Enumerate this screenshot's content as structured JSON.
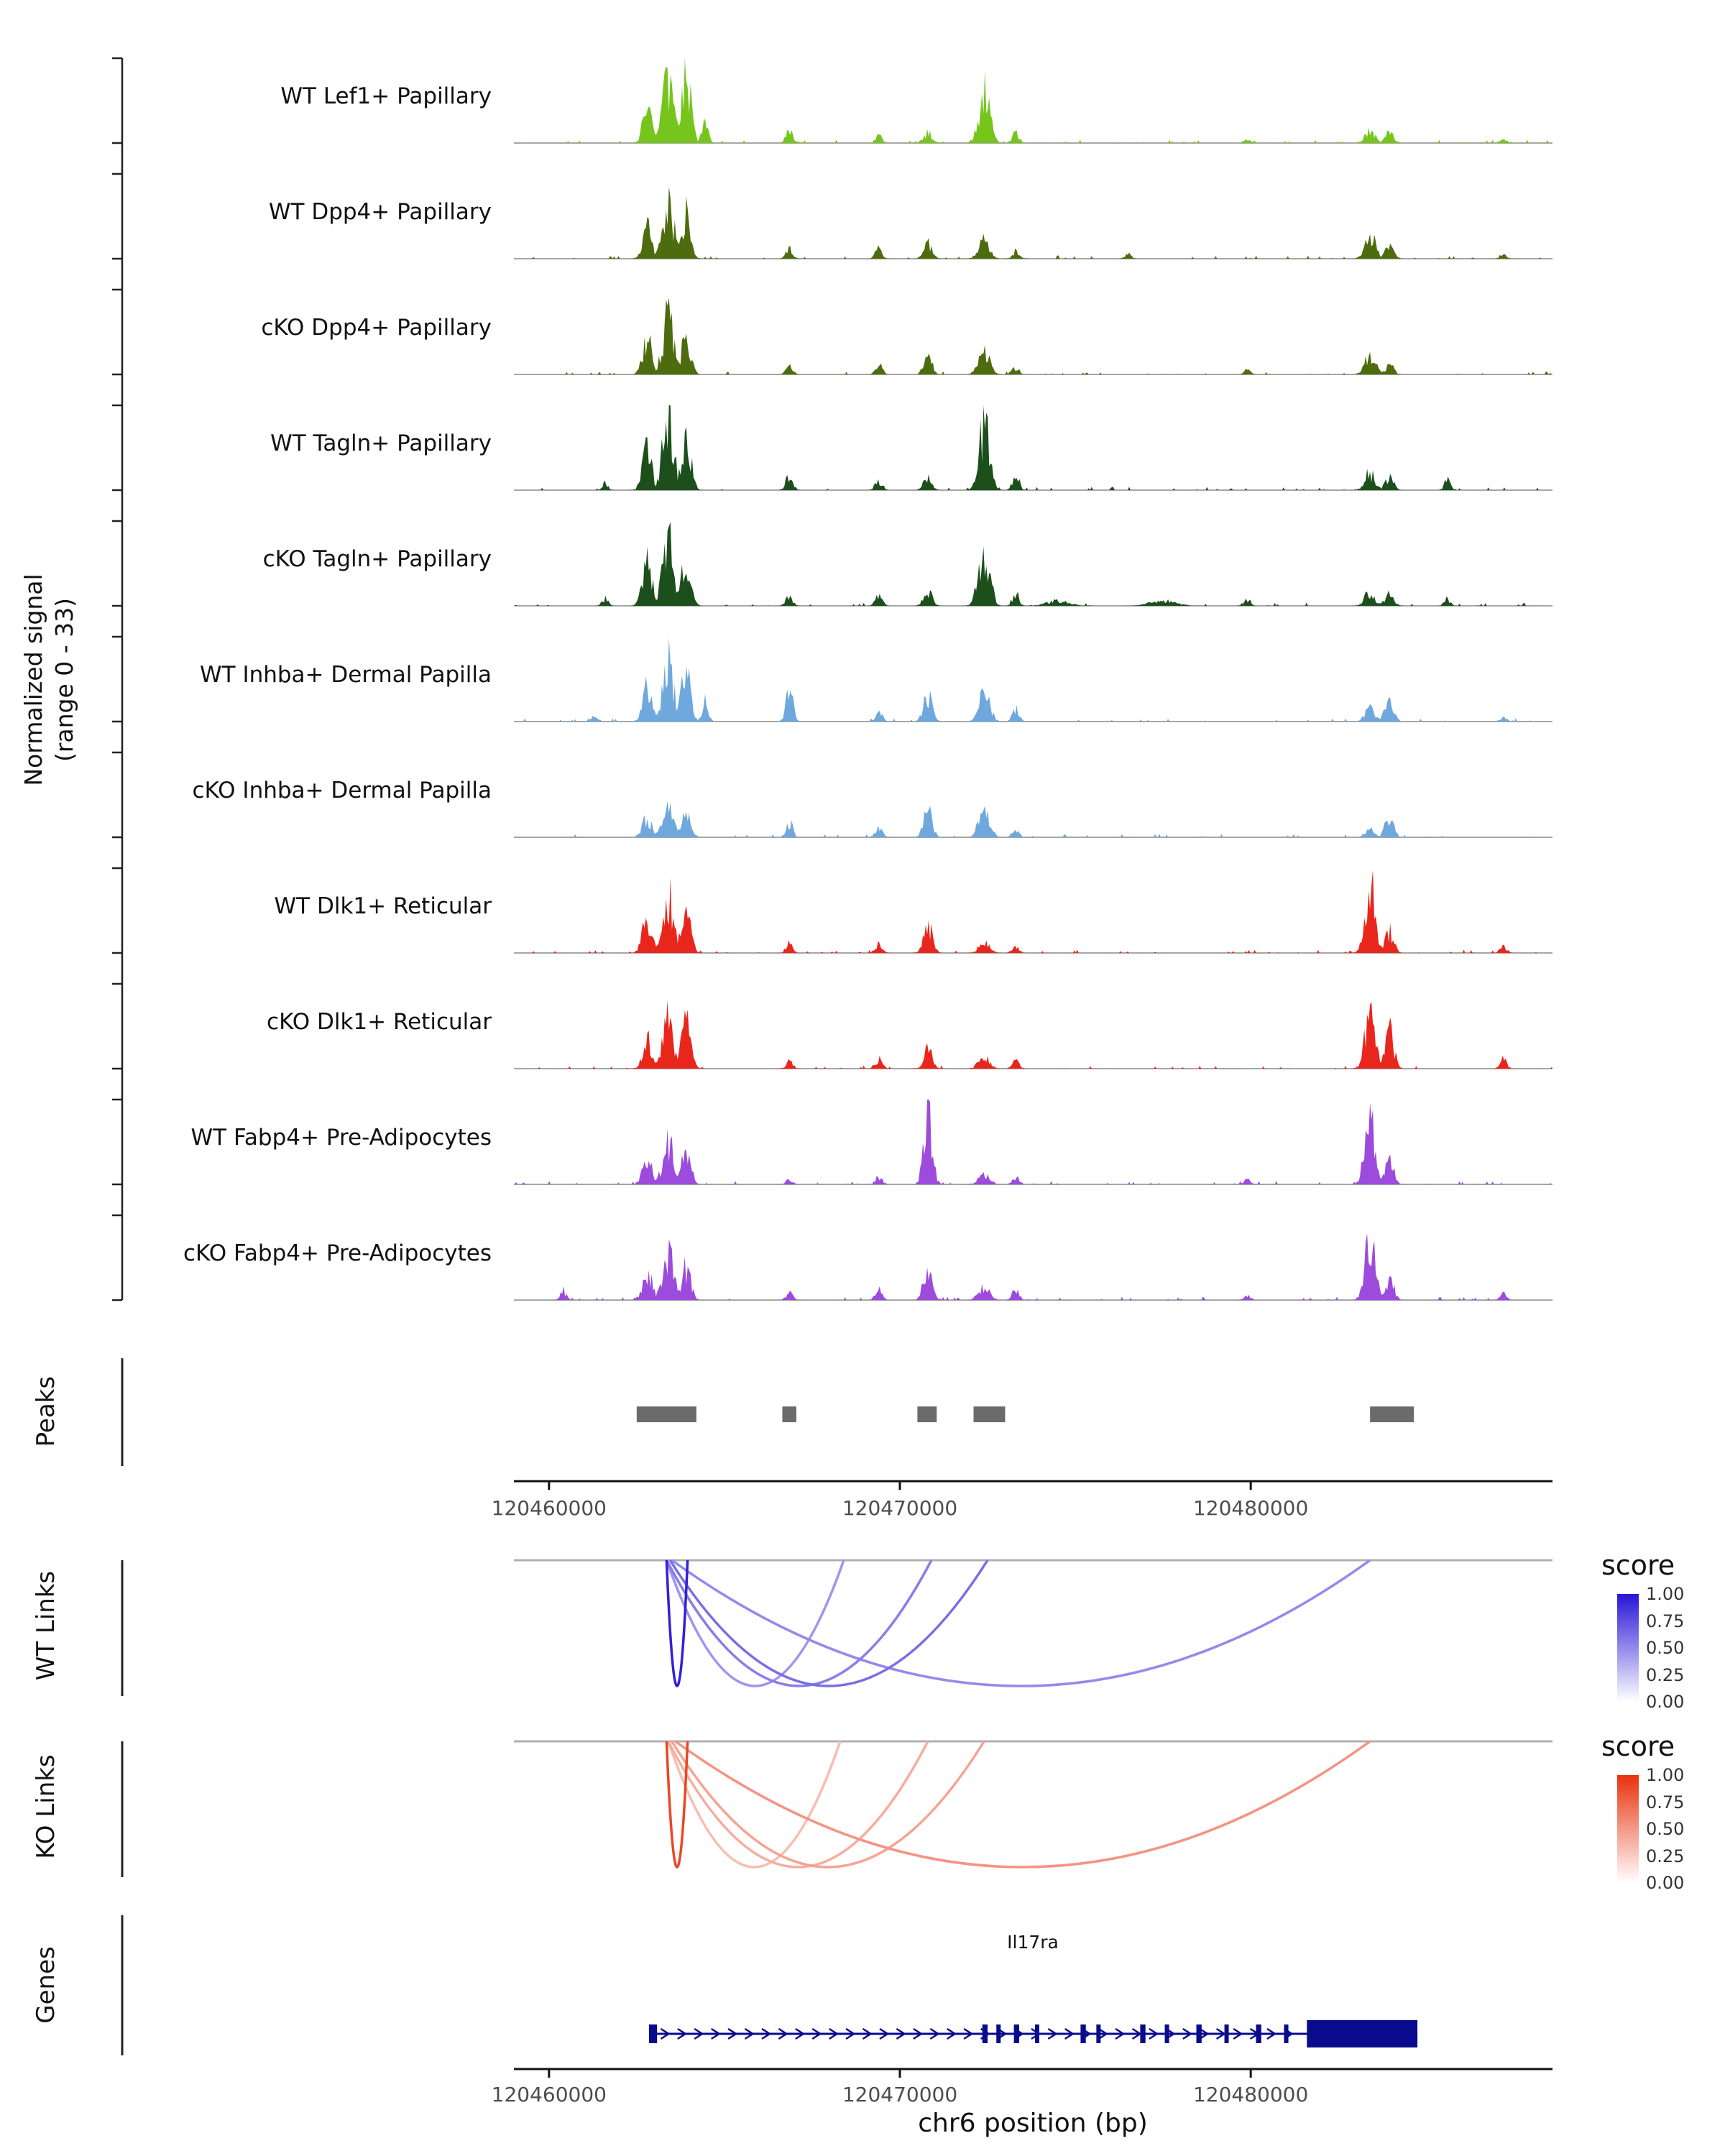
{
  "figure": {
    "y_axis_title": "Normalized signal\n(range 0 - 33)",
    "x_axis_title": "chr6 position (bp)",
    "section_labels": {
      "peaks": "Peaks",
      "wt_links": "WT Links",
      "ko_links": "KO Links",
      "genes": "Genes"
    },
    "legend": {
      "title": "score",
      "ticks": [
        "1.00",
        "0.75",
        "0.50",
        "0.25",
        "0.00"
      ],
      "wt_high_color": "#2715D6",
      "ko_high_color": "#E8320E",
      "low_color": "#FFFFFF"
    }
  },
  "chart_data": {
    "type": "area",
    "genome_window": {
      "chrom": "chr6",
      "xmin": 120459000,
      "xmax": 120488600
    },
    "x_ticks": [
      120460000,
      120470000,
      120480000
    ],
    "signal_range": [
      0,
      33
    ],
    "tracks": [
      {
        "name": "WT Lef1+ Papillary",
        "color": "#76C51D",
        "peaks": [
          [
            120462800,
            220,
            14
          ],
          [
            120463400,
            260,
            26
          ],
          [
            120463900,
            220,
            30
          ],
          [
            120464450,
            150,
            8
          ],
          [
            120466850,
            160,
            5
          ],
          [
            120469400,
            160,
            3
          ],
          [
            120470800,
            200,
            4
          ],
          [
            120472400,
            260,
            21
          ],
          [
            120473300,
            160,
            4
          ],
          [
            120479900,
            150,
            2
          ],
          [
            120483400,
            240,
            6
          ],
          [
            120483950,
            200,
            4
          ],
          [
            120487200,
            150,
            2
          ]
        ]
      },
      {
        "name": "WT Dpp4+ Papillary",
        "color": "#4D6C0D",
        "peaks": [
          [
            120462800,
            220,
            12
          ],
          [
            120463400,
            260,
            22
          ],
          [
            120463900,
            220,
            18
          ],
          [
            120466850,
            160,
            4
          ],
          [
            120469400,
            160,
            4
          ],
          [
            120470800,
            200,
            6
          ],
          [
            120472400,
            260,
            7
          ],
          [
            120473300,
            160,
            3
          ],
          [
            120476500,
            150,
            2
          ],
          [
            120483400,
            240,
            10
          ],
          [
            120483950,
            200,
            5
          ],
          [
            120487200,
            150,
            2
          ]
        ]
      },
      {
        "name": "cKO Dpp4+ Papillary",
        "color": "#4D6C0D",
        "peaks": [
          [
            120462800,
            220,
            14
          ],
          [
            120463400,
            260,
            24
          ],
          [
            120463900,
            220,
            16
          ],
          [
            120466850,
            160,
            3
          ],
          [
            120469400,
            160,
            4
          ],
          [
            120470800,
            200,
            7
          ],
          [
            120472400,
            260,
            9
          ],
          [
            120473300,
            160,
            3
          ],
          [
            120479900,
            150,
            2
          ],
          [
            120483400,
            240,
            9
          ],
          [
            120483950,
            200,
            4
          ]
        ]
      },
      {
        "name": "WT Tagln+ Papillary",
        "color": "#1C4F1C",
        "peaks": [
          [
            120461600,
            140,
            3
          ],
          [
            120462800,
            220,
            16
          ],
          [
            120463400,
            260,
            30
          ],
          [
            120463900,
            220,
            24
          ],
          [
            120466850,
            160,
            7
          ],
          [
            120469400,
            160,
            4
          ],
          [
            120470800,
            200,
            5
          ],
          [
            120472400,
            260,
            26
          ],
          [
            120473300,
            160,
            6
          ],
          [
            120483400,
            240,
            7
          ],
          [
            120483950,
            200,
            5
          ],
          [
            120485600,
            140,
            4
          ]
        ]
      },
      {
        "name": "cKO Tagln+ Papillary",
        "color": "#1C4F1C",
        "peaks": [
          [
            120461600,
            140,
            3
          ],
          [
            120462800,
            220,
            18
          ],
          [
            120463400,
            260,
            28
          ],
          [
            120463900,
            220,
            18
          ],
          [
            120466850,
            160,
            4
          ],
          [
            120469400,
            160,
            4
          ],
          [
            120470800,
            200,
            6
          ],
          [
            120472400,
            260,
            24
          ],
          [
            120473300,
            160,
            5
          ],
          [
            120474500,
            500,
            2
          ],
          [
            120477500,
            600,
            2
          ],
          [
            120479900,
            150,
            3
          ],
          [
            120483400,
            240,
            6
          ],
          [
            120483950,
            200,
            5
          ],
          [
            120485600,
            140,
            3
          ]
        ]
      },
      {
        "name": "WT Inhba+ Dermal Papilla",
        "color": "#6FA8DC",
        "peaks": [
          [
            120461300,
            150,
            3
          ],
          [
            120462800,
            220,
            14
          ],
          [
            120463400,
            260,
            24
          ],
          [
            120463900,
            220,
            20
          ],
          [
            120464450,
            150,
            8
          ],
          [
            120466850,
            160,
            13
          ],
          [
            120469400,
            160,
            4
          ],
          [
            120470800,
            200,
            11
          ],
          [
            120472400,
            260,
            12
          ],
          [
            120473300,
            160,
            5
          ],
          [
            120483400,
            240,
            5
          ],
          [
            120483950,
            200,
            11
          ],
          [
            120487200,
            150,
            2
          ]
        ]
      },
      {
        "name": "cKO Inhba+ Dermal Papilla",
        "color": "#6FA8DC",
        "peaks": [
          [
            120462800,
            220,
            8
          ],
          [
            120463400,
            260,
            12
          ],
          [
            120463900,
            220,
            10
          ],
          [
            120466850,
            160,
            6
          ],
          [
            120469400,
            160,
            5
          ],
          [
            120470800,
            200,
            11
          ],
          [
            120472400,
            260,
            11
          ],
          [
            120473300,
            160,
            4
          ],
          [
            120483400,
            240,
            3
          ],
          [
            120483950,
            200,
            8
          ]
        ]
      },
      {
        "name": "WT Dlk1+ Reticular",
        "color": "#E9261C",
        "peaks": [
          [
            120462800,
            220,
            14
          ],
          [
            120463400,
            260,
            24
          ],
          [
            120463900,
            220,
            18
          ],
          [
            120466850,
            160,
            4
          ],
          [
            120469400,
            160,
            4
          ],
          [
            120470800,
            200,
            12
          ],
          [
            120472400,
            260,
            4
          ],
          [
            120473300,
            160,
            3
          ],
          [
            120483400,
            240,
            30
          ],
          [
            120483950,
            200,
            9
          ],
          [
            120487200,
            150,
            3
          ]
        ]
      },
      {
        "name": "cKO Dlk1+ Reticular",
        "color": "#E9261C",
        "peaks": [
          [
            120462800,
            220,
            13
          ],
          [
            120463400,
            260,
            20
          ],
          [
            120463900,
            220,
            18
          ],
          [
            120466850,
            160,
            3
          ],
          [
            120469400,
            160,
            4
          ],
          [
            120470800,
            200,
            9
          ],
          [
            120472400,
            260,
            5
          ],
          [
            120473300,
            160,
            3
          ],
          [
            120483400,
            240,
            22
          ],
          [
            120483950,
            200,
            17
          ],
          [
            120487200,
            150,
            4
          ]
        ]
      },
      {
        "name": "WT Fabp4+ Pre-Adipocytes",
        "color": "#9C4BDC",
        "peaks": [
          [
            120462800,
            220,
            10
          ],
          [
            120463400,
            260,
            17
          ],
          [
            120463900,
            220,
            14
          ],
          [
            120466850,
            160,
            2
          ],
          [
            120469400,
            160,
            3
          ],
          [
            120470800,
            200,
            30
          ],
          [
            120472400,
            260,
            4
          ],
          [
            120473300,
            160,
            3
          ],
          [
            120479900,
            150,
            2
          ],
          [
            120483400,
            240,
            28
          ],
          [
            120483950,
            200,
            10
          ]
        ]
      },
      {
        "name": "cKO Fabp4+ Pre-Adipocytes",
        "color": "#9C4BDC",
        "peaks": [
          [
            120460400,
            140,
            4
          ],
          [
            120462800,
            220,
            12
          ],
          [
            120463400,
            260,
            18
          ],
          [
            120463900,
            220,
            13
          ],
          [
            120466850,
            160,
            3
          ],
          [
            120469400,
            160,
            4
          ],
          [
            120470800,
            200,
            15
          ],
          [
            120472400,
            260,
            5
          ],
          [
            120473300,
            160,
            5
          ],
          [
            120479900,
            150,
            2
          ],
          [
            120483400,
            240,
            24
          ],
          [
            120483950,
            200,
            9
          ],
          [
            120487200,
            150,
            3
          ]
        ]
      }
    ],
    "peaks_color": "#6B6B6B",
    "peaks_track": [
      [
        120462500,
        120464200
      ],
      [
        120466650,
        120467050
      ],
      [
        120470500,
        120471050
      ],
      [
        120472100,
        120473000
      ],
      [
        120483400,
        120484650
      ]
    ],
    "links_wt": [
      {
        "start": 120463350,
        "end": 120463950,
        "score": 0.95
      },
      {
        "start": 120463350,
        "end": 120468400,
        "score": 0.45
      },
      {
        "start": 120463350,
        "end": 120470900,
        "score": 0.55
      },
      {
        "start": 120463450,
        "end": 120472500,
        "score": 0.62
      },
      {
        "start": 120463500,
        "end": 120483400,
        "score": 0.5
      }
    ],
    "links_ko": [
      {
        "start": 120463350,
        "end": 120463950,
        "score": 0.9
      },
      {
        "start": 120463400,
        "end": 120468300,
        "score": 0.32
      },
      {
        "start": 120463400,
        "end": 120470800,
        "score": 0.4
      },
      {
        "start": 120463500,
        "end": 120472400,
        "score": 0.45
      },
      {
        "start": 120463600,
        "end": 120483400,
        "score": 0.52
      }
    ],
    "gene_color": "#0A0A8C",
    "genes": [
      {
        "name": "Il17ra",
        "strand": "+",
        "start": 120462850,
        "end": 120484750,
        "exons": [
          [
            120462850,
            120463080
          ],
          [
            120472350,
            120472500
          ],
          [
            120472750,
            120472870
          ],
          [
            120473250,
            120473400
          ],
          [
            120473850,
            120473970
          ],
          [
            120475150,
            120475300
          ],
          [
            120475600,
            120475720
          ],
          [
            120476850,
            120477000
          ],
          [
            120477550,
            120477670
          ],
          [
            120478450,
            120478600
          ],
          [
            120479250,
            120479370
          ],
          [
            120480150,
            120480300
          ],
          [
            120480950,
            120481070
          ]
        ],
        "utr": [
          120481600,
          120484750
        ]
      }
    ]
  }
}
